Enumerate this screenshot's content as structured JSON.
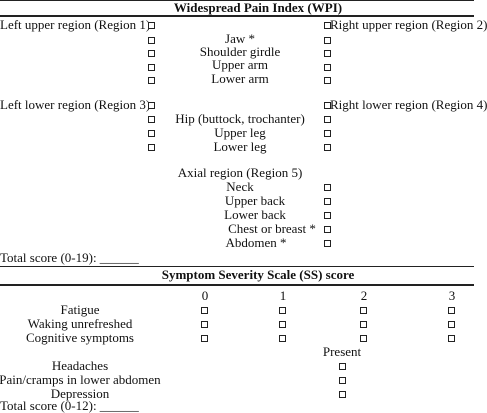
{
  "wpi": {
    "title": "Widespread Pain Index (WPI)",
    "left_upper": "Left upper region (Region 1)",
    "right_upper": "Right upper region (Region 2)",
    "upper_items": [
      "Jaw *",
      "Shoulder girdle",
      "Upper arm",
      "Lower arm"
    ],
    "left_lower": "Left lower region (Region 3)",
    "right_lower": "Right lower region (Region 4)",
    "lower_items": [
      "Hip (buttock, trochanter)",
      "Upper leg",
      "Lower leg"
    ],
    "axial": "Axial region (Region 5)",
    "axial_items": [
      "Neck",
      "Upper back",
      "Lower back",
      "Chest or breast *",
      "Abdomen *"
    ],
    "total": "Total score (0-19): ______"
  },
  "ss": {
    "title": "Symptom Severity Scale (SS) score",
    "scale_headers": [
      "0",
      "1",
      "2",
      "3"
    ],
    "symptoms": [
      "Fatigue",
      "Waking unrefreshed",
      "Cognitive symptoms"
    ],
    "present_header": "Present",
    "present_items": [
      "Headaches",
      "Pain/cramps in lower abdomen",
      "Depression"
    ],
    "total": "Total score (0-12): ______"
  }
}
